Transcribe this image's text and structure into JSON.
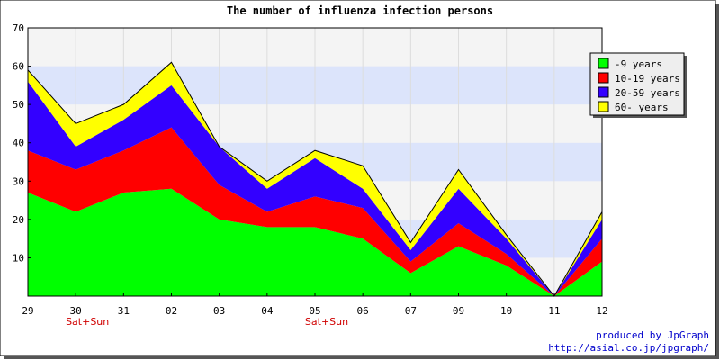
{
  "chart_data": {
    "type": "area",
    "stacked": true,
    "title": "The number of influenza infection persons",
    "categories": [
      "29",
      "30",
      "31",
      "02",
      "03",
      "04",
      "05",
      "06",
      "07",
      "09",
      "10",
      "11",
      "12"
    ],
    "series": [
      {
        "name": "-9 years",
        "color": "#00ff00",
        "values": [
          27,
          22,
          27,
          28,
          20,
          18,
          18,
          15,
          6,
          13,
          8,
          0,
          9
        ]
      },
      {
        "name": "10-19 years",
        "color": "#ff0000",
        "values": [
          11,
          11,
          11,
          16,
          9,
          4,
          8,
          8,
          3,
          6,
          3,
          0,
          6
        ]
      },
      {
        "name": "20-59 years",
        "color": "#3300ff",
        "values": [
          18,
          6,
          8,
          11,
          10,
          6,
          10,
          5,
          3,
          9,
          4,
          0,
          5
        ]
      },
      {
        "name": "60- years",
        "color": "#ffff00",
        "values": [
          3,
          6,
          4,
          6,
          0,
          2,
          2,
          6,
          2,
          5,
          1,
          0,
          2
        ]
      }
    ],
    "ylim": [
      0,
      70
    ],
    "yticks": [
      10,
      20,
      30,
      40,
      50,
      60,
      70
    ],
    "grid": true,
    "legend_position": "top-right",
    "annotations": [
      {
        "category": "30",
        "text": "Sat+Sun"
      },
      {
        "category": "05",
        "text": "Sat+Sun"
      }
    ]
  },
  "footer": {
    "produced_by": "produced by JpGraph",
    "url": "http://asial.co.jp/jpgraph/"
  }
}
